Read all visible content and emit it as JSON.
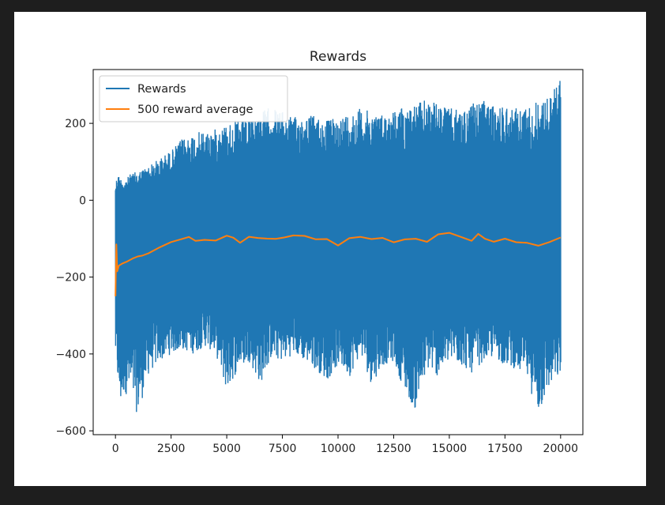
{
  "colors": {
    "background": "#1e1e1e",
    "figure": "#ffffff",
    "rewards": "#1f77b4",
    "average": "#ff7f0e"
  },
  "chart_data": {
    "type": "line",
    "title": "Rewards",
    "xlabel": "",
    "ylabel": "",
    "xlim": [
      -1000,
      21000
    ],
    "ylim": [
      -610,
      340
    ],
    "xticks": [
      0,
      2500,
      5000,
      7500,
      10000,
      12500,
      15000,
      17500,
      20000
    ],
    "xtick_labels": [
      "0",
      "2500",
      "5000",
      "7500",
      "10000",
      "12500",
      "15000",
      "17500",
      "20000"
    ],
    "yticks": [
      -600,
      -400,
      -200,
      0,
      200
    ],
    "ytick_labels": [
      "−600",
      "−400",
      "−200",
      "0",
      "200"
    ],
    "legend": {
      "placement": "upper-left",
      "entries": [
        "Rewards",
        "500 reward average"
      ]
    },
    "grid": false,
    "series": [
      {
        "name": "Rewards",
        "kind": "band",
        "x": [
          0,
          100,
          200,
          400,
          700,
          1000,
          1500,
          2000,
          2500,
          3000,
          3500,
          4000,
          4500,
          5000,
          5500,
          6000,
          6500,
          7000,
          7500,
          8000,
          8500,
          9000,
          9500,
          10000,
          10500,
          11000,
          11500,
          12000,
          12500,
          13000,
          13500,
          14000,
          14500,
          15000,
          15500,
          16000,
          16500,
          17000,
          17500,
          18000,
          18500,
          19000,
          19500,
          20000
        ],
        "max": [
          45,
          70,
          60,
          50,
          70,
          75,
          90,
          110,
          130,
          160,
          175,
          180,
          185,
          200,
          210,
          205,
          230,
          245,
          230,
          215,
          225,
          220,
          210,
          215,
          230,
          240,
          230,
          225,
          235,
          245,
          250,
          265,
          250,
          240,
          235,
          250,
          260,
          245,
          250,
          240,
          245,
          260,
          270,
          325
        ],
        "min": [
          -415,
          -480,
          -550,
          -500,
          -520,
          -560,
          -450,
          -420,
          -400,
          -390,
          -400,
          -380,
          -400,
          -500,
          -440,
          -420,
          -480,
          -410,
          -420,
          -400,
          -420,
          -440,
          -470,
          -430,
          -460,
          -400,
          -480,
          -430,
          -420,
          -500,
          -550,
          -440,
          -460,
          -420,
          -430,
          -450,
          -420,
          -410,
          -430,
          -440,
          -470,
          -560,
          -490,
          -460
        ]
      },
      {
        "name": "500 reward average",
        "x": [
          0,
          40,
          80,
          150,
          300,
          500,
          800,
          1000,
          1200,
          1500,
          2000,
          2500,
          3000,
          3300,
          3600,
          4000,
          4500,
          5000,
          5300,
          5600,
          6000,
          6400,
          6800,
          7200,
          7600,
          8000,
          8500,
          9000,
          9500,
          10000,
          10500,
          11000,
          11500,
          12000,
          12500,
          13000,
          13500,
          14000,
          14500,
          15000,
          15500,
          16000,
          16300,
          16600,
          17000,
          17500,
          18000,
          18500,
          19000,
          19500,
          20000
        ],
        "y": [
          -250,
          -115,
          -185,
          -170,
          -165,
          -160,
          -152,
          -145,
          -143,
          -140,
          -125,
          -110,
          -100,
          -95,
          -105,
          -104,
          -102,
          -95,
          -100,
          -110,
          -96,
          -98,
          -100,
          -100,
          -97,
          -90,
          -95,
          -100,
          -103,
          -115,
          -100,
          -98,
          -102,
          -100,
          -110,
          -103,
          -100,
          -110,
          -90,
          -82,
          -95,
          -108,
          -85,
          -100,
          -108,
          -102,
          -108,
          -112,
          -120,
          -110,
          -97
        ]
      }
    ]
  }
}
